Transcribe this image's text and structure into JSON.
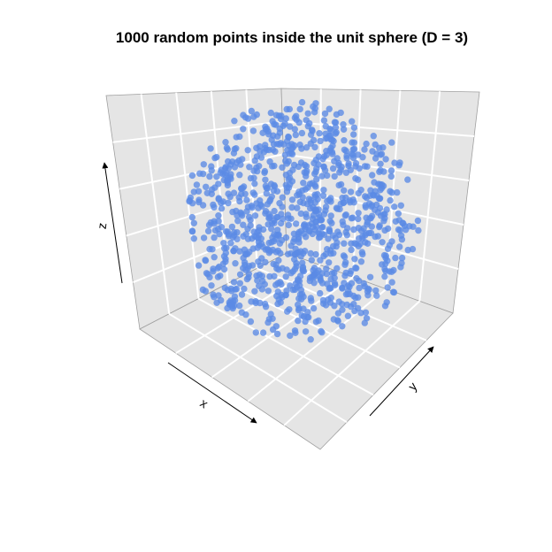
{
  "chart_data": {
    "type": "scatter",
    "title": "1000 random points inside the unit sphere (D = 3)",
    "xlabel": "x",
    "ylabel": "y",
    "zlabel": "z",
    "xlim": [
      -1,
      1
    ],
    "ylim": [
      -1,
      1
    ],
    "zlim": [
      -1,
      1
    ],
    "n_points": 1000,
    "projection": "3d",
    "grid": true,
    "point_color": "#5b8ae6",
    "panel_color": "#e5e5e5",
    "grid_color": "#ffffff"
  }
}
